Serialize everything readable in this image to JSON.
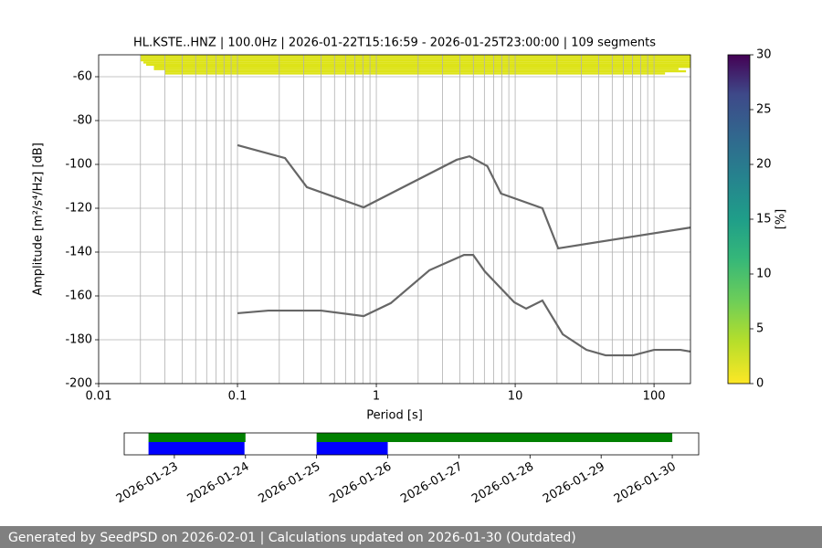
{
  "chart_data": [
    {
      "type": "ppsd",
      "title": "HL.KSTE..HNZ | 100.0Hz | 2026-01-22T15:16:59 - 2026-01-25T23:00:00 | 109 segments",
      "x_label": "Period [s]",
      "y_label": "Amplitude [m²/s⁴/Hz] [dB]",
      "log_x": true,
      "grid": true,
      "xlim": [
        0.01,
        183
      ],
      "xticks": [
        0.01,
        0.1,
        1,
        10,
        100
      ],
      "xgrid": [
        0.02,
        0.03,
        0.04,
        0.05,
        0.06,
        0.07,
        0.08,
        0.09,
        0.1,
        0.2,
        0.3,
        0.4,
        0.5,
        0.6,
        0.7,
        0.8,
        0.9,
        1,
        2,
        3,
        4,
        5,
        6,
        7,
        8,
        9,
        10,
        20,
        30,
        40,
        50,
        60,
        70,
        80,
        90,
        100
      ],
      "ylim": [
        -200,
        -50
      ],
      "yticks": [
        -200,
        -180,
        -160,
        -140,
        -120,
        -100,
        -80,
        -60
      ],
      "cells": {
        "color": "#dde318",
        "period_start": [
          0.02,
          0.02,
          0.02,
          0.021,
          0.022,
          0.025,
          0.025,
          0.03,
          0.03
        ],
        "period_end": [
          183,
          183,
          183,
          183,
          183,
          183,
          150,
          170,
          120
        ],
        "db": [
          -50,
          -51,
          -52,
          -53,
          -54,
          -55,
          -56,
          -57,
          -58
        ]
      },
      "series": [
        {
          "color": "#666666",
          "x": [
            0.1,
            0.22,
            0.316,
            0.81,
            3.79,
            4.69,
            6.3,
            7.9,
            15.7,
            20.4,
            183
          ],
          "values": [
            -91.2,
            -97.1,
            -110.4,
            -119.6,
            -97.9,
            -96.3,
            -100.8,
            -113.3,
            -120,
            -138.3,
            -128.8
          ]
        },
        {
          "color": "#666666",
          "x": [
            0.1,
            0.167,
            0.4,
            0.81,
            1.27,
            2.41,
            4.28,
            4.98,
            6.04,
            9.85,
            12,
            15.7,
            22,
            32.6,
            44.8,
            70.6,
            100,
            155,
            183
          ],
          "values": [
            -167.9,
            -166.7,
            -166.7,
            -169.2,
            -163.3,
            -148.3,
            -141.3,
            -141.3,
            -148.8,
            -162.9,
            -165.8,
            -162.1,
            -177.5,
            -184.6,
            -187.1,
            -187.1,
            -184.6,
            -184.6,
            -185.4
          ]
        }
      ],
      "colorbar": {
        "label": "[%]",
        "lim": [
          0,
          30
        ],
        "ticks": [
          0,
          5,
          10,
          15,
          20,
          25,
          30
        ]
      }
    },
    {
      "type": "timeline",
      "xlim": [
        "2026-01-22T07:05",
        "2026-01-30T08:55"
      ],
      "xticks": [
        "2026-01-23",
        "2026-01-24",
        "2026-01-25",
        "2026-01-26",
        "2026-01-27",
        "2026-01-28",
        "2026-01-29",
        "2026-01-30"
      ],
      "series": [
        {
          "color": "#008000",
          "segments": [
            [
              "2026-01-22T15:17",
              "2026-01-24T00:00"
            ],
            [
              "2026-01-25T00:00",
              "2026-01-30T00:00"
            ]
          ]
        },
        {
          "color": "#0000ff",
          "segments": [
            [
              "2026-01-22T15:17",
              "2026-01-23T23:40"
            ],
            [
              "2026-01-25T00:00",
              "2026-01-26T00:00"
            ]
          ]
        }
      ]
    }
  ],
  "footer": {
    "text": "Generated by SeedPSD on 2026-02-01 | Calculations updated on 2026-01-30 (Outdated)"
  }
}
